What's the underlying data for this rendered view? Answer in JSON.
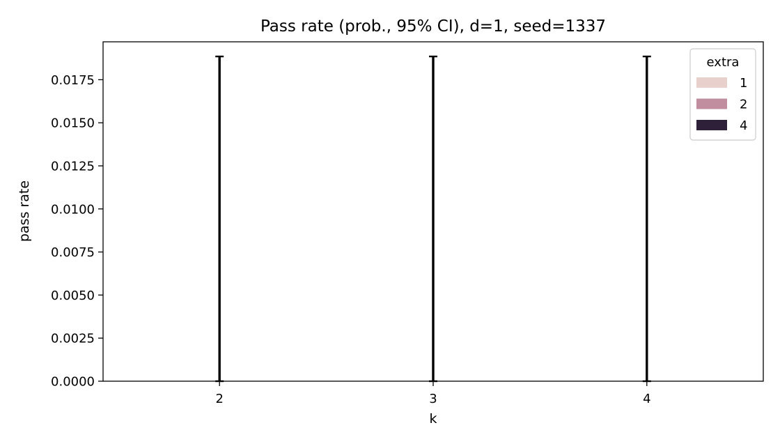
{
  "chart_data": {
    "type": "bar",
    "title": "Pass rate (prob., 95% CI), d=1, seed=1337",
    "xlabel": "k",
    "ylabel": "pass rate",
    "categories": [
      "2",
      "3",
      "4"
    ],
    "series": [
      {
        "name": "1",
        "color": "#e8d1cc",
        "values": [
          0,
          0,
          0
        ],
        "ci": [
          [
            0,
            0.01885
          ],
          [
            0,
            0.01885
          ],
          [
            0,
            0.01885
          ]
        ]
      },
      {
        "name": "2",
        "color": "#c08e9e",
        "values": [
          0,
          0,
          0
        ],
        "ci": [
          [
            0,
            0.01885
          ],
          [
            0,
            0.01885
          ],
          [
            0,
            0.01885
          ]
        ]
      },
      {
        "name": "4",
        "color": "#2e2039",
        "values": [
          0,
          0,
          0
        ],
        "ci": [
          [
            0,
            0.01885
          ],
          [
            0,
            0.01885
          ],
          [
            0,
            0.01885
          ]
        ]
      }
    ],
    "ylim": [
      0,
      0.0197
    ],
    "yticks": [
      "0.0000",
      "0.0025",
      "0.0050",
      "0.0075",
      "0.0100",
      "0.0125",
      "0.0150",
      "0.0175"
    ],
    "ytick_values": [
      0,
      0.0025,
      0.005,
      0.0075,
      0.01,
      0.0125,
      0.015,
      0.0175
    ],
    "legend": {
      "title": "extra",
      "placement": "top-right"
    },
    "grid": false
  }
}
